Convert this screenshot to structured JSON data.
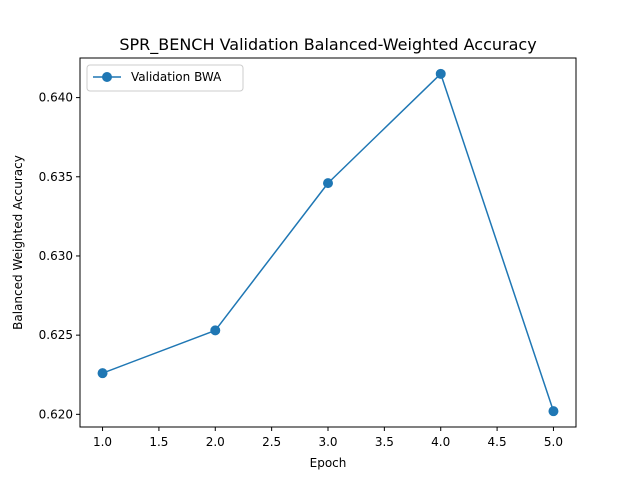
{
  "chart_data": {
    "type": "line",
    "title": "SPR_BENCH Validation Balanced-Weighted Accuracy",
    "xlabel": "Epoch",
    "ylabel": "Balanced Weighted Accuracy",
    "xlim": [
      0.8,
      5.2
    ],
    "ylim": [
      0.6192,
      0.6425
    ],
    "x_ticks": [
      1.0,
      1.5,
      2.0,
      2.5,
      3.0,
      3.5,
      4.0,
      4.5,
      5.0
    ],
    "x_tick_labels": [
      "1.0",
      "1.5",
      "2.0",
      "2.5",
      "3.0",
      "3.5",
      "4.0",
      "4.5",
      "5.0"
    ],
    "y_ticks": [
      0.62,
      0.625,
      0.63,
      0.635,
      0.64
    ],
    "y_tick_labels": [
      "0.620",
      "0.625",
      "0.630",
      "0.635",
      "0.640"
    ],
    "grid": false,
    "legend_position": "upper-left",
    "series": [
      {
        "name": "Validation BWA",
        "color": "#1f77b4",
        "marker": "circle",
        "x": [
          1,
          2,
          3,
          4,
          5
        ],
        "y": [
          0.6226,
          0.6253,
          0.6346,
          0.6415,
          0.6202
        ]
      }
    ]
  }
}
